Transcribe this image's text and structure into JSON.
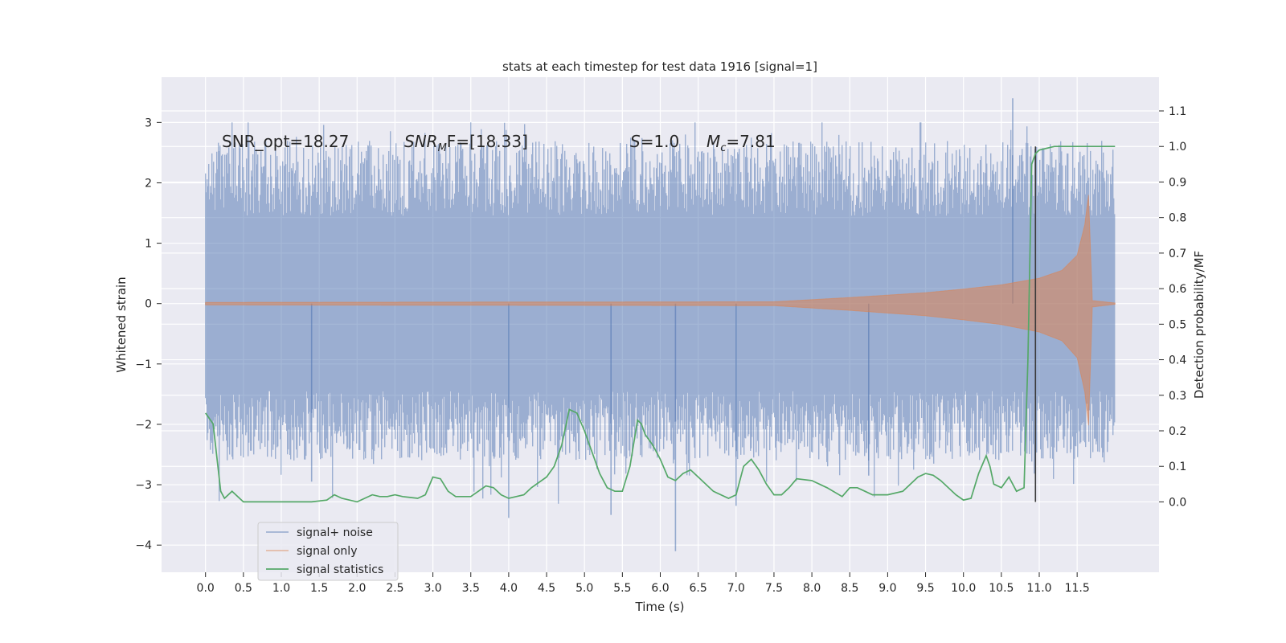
{
  "chart_data": {
    "type": "line",
    "title": "stats at each timestep for test data 1916 [signal=1]",
    "xlabel": "Time (s)",
    "ylabel": "Whitened strain",
    "ylabel_right": "Detection probability/MF",
    "xlim": [
      -0.58,
      12.58
    ],
    "ylim": [
      -4.45,
      3.75
    ],
    "ylim_right": [
      -0.198,
      1.195
    ],
    "x_ticks": [
      0.0,
      0.5,
      1.0,
      1.5,
      2.0,
      2.5,
      3.0,
      3.5,
      4.0,
      4.5,
      5.0,
      5.5,
      6.0,
      6.5,
      7.0,
      7.5,
      8.0,
      8.5,
      9.0,
      9.5,
      10.0,
      10.5,
      11.0,
      11.5
    ],
    "x_tick_labels": [
      "0.0",
      "0.5",
      "1.0",
      "1.5",
      "2.0",
      "2.5",
      "3.0",
      "3.5",
      "4.0",
      "4.5",
      "5.0",
      "5.5",
      "6.0",
      "6.5",
      "7.0",
      "7.5",
      "8.0",
      "8.5",
      "9.0",
      "9.5",
      "10.0",
      "10.5",
      "11.0",
      "11.5"
    ],
    "y_ticks": [
      -4,
      -3,
      -2,
      -1,
      0,
      1,
      2,
      3
    ],
    "y_tick_labels": [
      "−4",
      "−3",
      "−2",
      "−1",
      "0",
      "1",
      "2",
      "3"
    ],
    "y_ticks_right": [
      0.0,
      0.1,
      0.2,
      0.3,
      0.4,
      0.5,
      0.6,
      0.7,
      0.8,
      0.9,
      1.0,
      1.1
    ],
    "y_tick_labels_right": [
      "0.0",
      "0.1",
      "0.2",
      "0.3",
      "0.4",
      "0.5",
      "0.6",
      "0.7",
      "0.8",
      "0.9",
      "1.0",
      "1.1"
    ],
    "grid": true,
    "legend_placement": "lower-left",
    "annotations": {
      "snr_opt": "SNR_opt=18.27",
      "snr_mf_main": "SNR",
      "snr_mf_sub": "M",
      "snr_mf_rest": "F=[18.33]",
      "s_main": "S",
      "s_rest": "=1.0",
      "mc_main": "M",
      "mc_sub": "c",
      "mc_rest": "=7.81"
    },
    "vline_x": 10.95,
    "series": [
      {
        "name": "signal+ noise",
        "color": "#4c72b0",
        "axis": "left",
        "x_range": [
          0.0,
          12.0
        ],
        "envelope_typical": 1.45,
        "peak_max": 3.4,
        "peak_min": -4.1
      },
      {
        "name": "signal only",
        "color": "#dd8452",
        "axis": "left",
        "x_range": [
          0.0,
          12.0
        ],
        "envelope_t": [
          0.0,
          7.5,
          8.5,
          9.5,
          10.0,
          10.5,
          11.0,
          11.3,
          11.5,
          11.6,
          11.65,
          11.7,
          12.0
        ],
        "envelope_a": [
          0.02,
          0.03,
          0.1,
          0.18,
          0.24,
          0.31,
          0.42,
          0.55,
          0.8,
          1.3,
          1.8,
          0.05,
          0.01
        ]
      },
      {
        "name": "signal statistics",
        "color": "#55a868",
        "axis": "right",
        "x": [
          0.0,
          0.1,
          0.2,
          0.25,
          0.3,
          0.35,
          0.4,
          0.5,
          0.6,
          0.7,
          0.8,
          1.0,
          1.2,
          1.4,
          1.6,
          1.7,
          1.8,
          2.0,
          2.2,
          2.3,
          2.4,
          2.5,
          2.6,
          2.8,
          2.9,
          3.0,
          3.1,
          3.2,
          3.3,
          3.5,
          3.6,
          3.7,
          3.8,
          3.9,
          4.0,
          4.1,
          4.2,
          4.3,
          4.5,
          4.6,
          4.7,
          4.8,
          4.9,
          5.0,
          5.1,
          5.2,
          5.3,
          5.4,
          5.5,
          5.6,
          5.7,
          5.75,
          5.8,
          5.9,
          6.0,
          6.1,
          6.2,
          6.3,
          6.4,
          6.5,
          6.7,
          6.9,
          7.0,
          7.1,
          7.2,
          7.3,
          7.4,
          7.5,
          7.6,
          7.7,
          7.8,
          8.0,
          8.2,
          8.4,
          8.5,
          8.6,
          8.7,
          8.8,
          9.0,
          9.2,
          9.4,
          9.5,
          9.6,
          9.7,
          9.9,
          10.0,
          10.1,
          10.2,
          10.3,
          10.35,
          10.4,
          10.5,
          10.6,
          10.7,
          10.8,
          10.85,
          10.9,
          10.95,
          11.0,
          11.1,
          11.2,
          11.3,
          11.5,
          11.7,
          11.9,
          12.0
        ],
        "y": [
          0.25,
          0.22,
          0.03,
          0.01,
          0.02,
          0.03,
          0.02,
          0.0,
          0.0,
          0.0,
          0.0,
          0.0,
          0.0,
          0.0,
          0.005,
          0.02,
          0.01,
          0.0,
          0.02,
          0.015,
          0.015,
          0.02,
          0.015,
          0.01,
          0.02,
          0.07,
          0.065,
          0.03,
          0.015,
          0.015,
          0.03,
          0.045,
          0.04,
          0.02,
          0.01,
          0.015,
          0.02,
          0.04,
          0.07,
          0.1,
          0.16,
          0.26,
          0.25,
          0.2,
          0.14,
          0.08,
          0.04,
          0.03,
          0.03,
          0.1,
          0.23,
          0.22,
          0.19,
          0.16,
          0.12,
          0.07,
          0.06,
          0.08,
          0.09,
          0.07,
          0.03,
          0.01,
          0.02,
          0.1,
          0.12,
          0.09,
          0.05,
          0.02,
          0.02,
          0.04,
          0.065,
          0.06,
          0.04,
          0.015,
          0.04,
          0.04,
          0.03,
          0.02,
          0.02,
          0.03,
          0.07,
          0.08,
          0.075,
          0.06,
          0.02,
          0.005,
          0.01,
          0.08,
          0.13,
          0.1,
          0.05,
          0.04,
          0.07,
          0.03,
          0.04,
          0.4,
          0.95,
          0.98,
          0.99,
          0.995,
          1.0,
          1.0,
          1.0,
          1.0,
          1.0,
          1.0
        ]
      }
    ]
  }
}
